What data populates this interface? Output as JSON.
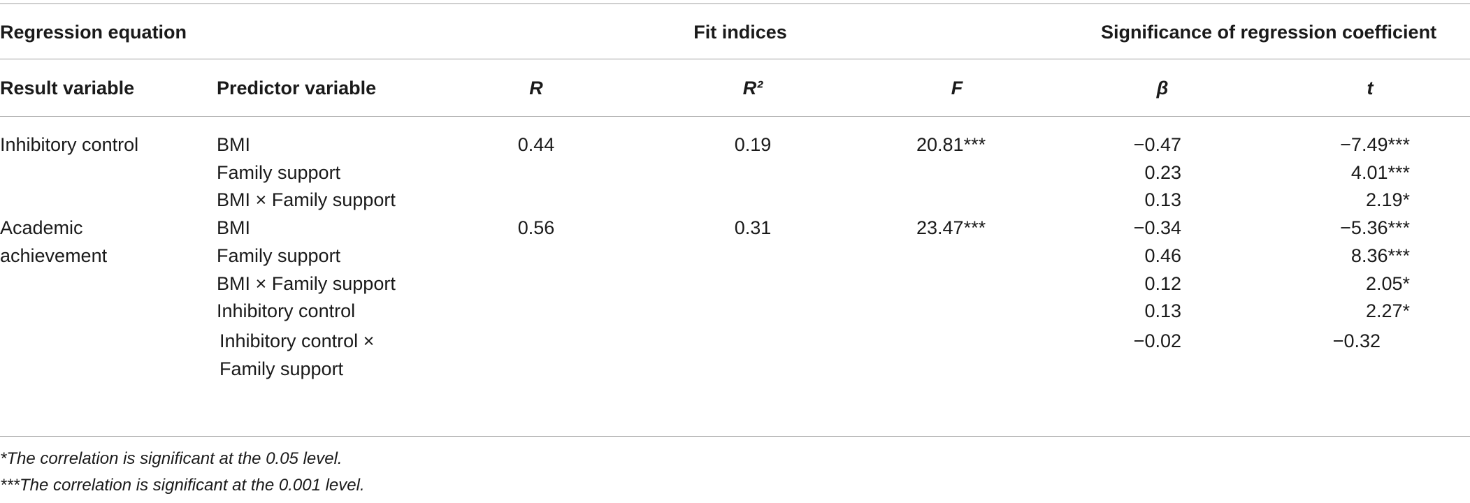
{
  "table": {
    "header_groups": [
      "Regression equation",
      "Fit indices",
      "Significance of regression coefficient"
    ],
    "columns": [
      "Result variable",
      "Predictor variable",
      "R",
      "R²",
      "F",
      "β",
      "t"
    ],
    "groups": [
      {
        "result": "Inhibitory control",
        "R": "0.44",
        "R2": "0.19",
        "F": "20.81***",
        "predictors": [
          {
            "name": "BMI",
            "beta": "−0.47",
            "t": "−7.49***"
          },
          {
            "name": "Family support",
            "beta": "0.23",
            "t": "4.01***"
          },
          {
            "name": "BMI × Family support",
            "beta": "0.13",
            "t": "2.19*"
          }
        ]
      },
      {
        "result": "Academic achievement",
        "R": "0.56",
        "R2": "0.31",
        "F": "23.47***",
        "predictors": [
          {
            "name": "BMI",
            "beta": "−0.34",
            "t": "−5.36***"
          },
          {
            "name": "Family support",
            "beta": "0.46",
            "t": "8.36***"
          },
          {
            "name": "BMI × Family support",
            "beta": "0.12",
            "t": "2.05*"
          },
          {
            "name": "Inhibitory control",
            "beta": "0.13",
            "t": "2.27*"
          },
          {
            "name": "Inhibitory control × Family support",
            "beta": "−0.02",
            "t": "−0.32"
          }
        ]
      }
    ],
    "footnotes": [
      "*The correlation is significant at the 0.05 level.",
      "***The correlation is significant at the 0.001 level."
    ]
  }
}
